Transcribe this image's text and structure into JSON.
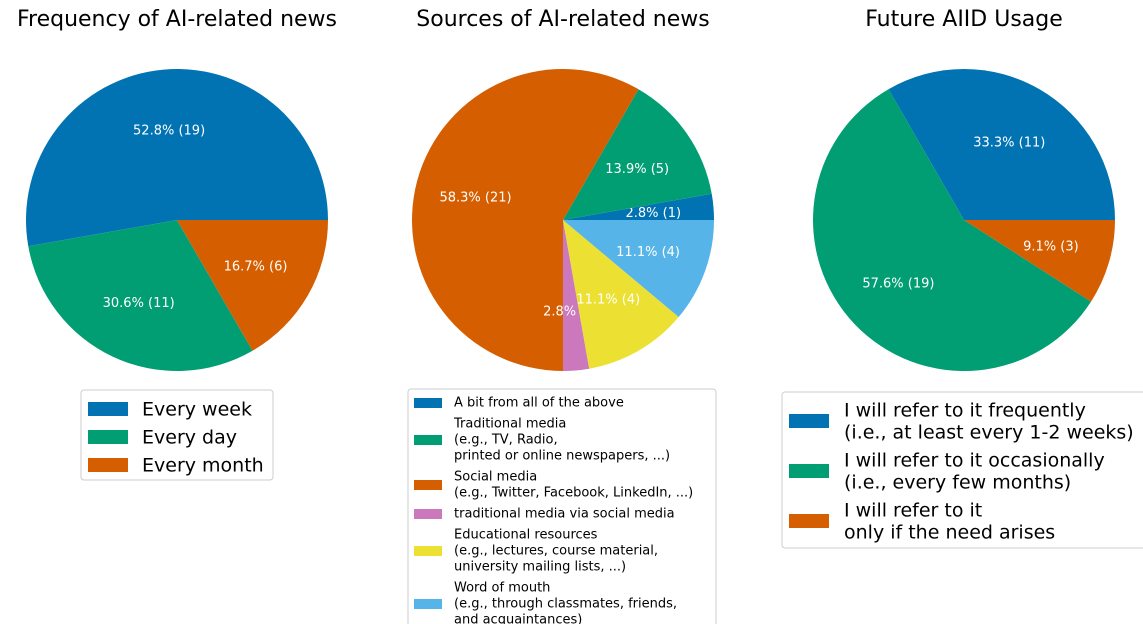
{
  "chart_data": [
    {
      "type": "pie",
      "title": "Frequency of AI-related news",
      "slices": [
        {
          "label": "Every week",
          "value": 19,
          "percent": 52.8,
          "color": "#0173b2",
          "data_label": "52.8% (19)"
        },
        {
          "label": "Every day",
          "value": 11,
          "percent": 30.6,
          "color": "#029e73",
          "data_label": "30.6% (11)"
        },
        {
          "label": "Every month",
          "value": 6,
          "percent": 16.7,
          "color": "#d55e00",
          "data_label": "16.7% (6)"
        }
      ],
      "legend": {
        "placement": "below",
        "entries": [
          "Every week",
          "Every day",
          "Every month"
        ]
      }
    },
    {
      "type": "pie",
      "title": "Sources of AI-related news",
      "slices": [
        {
          "label": "A bit from all of the above",
          "value": 1,
          "percent": 2.8,
          "color": "#0173b2",
          "data_label": "2.8% (1)"
        },
        {
          "label": "Traditional media\n(e.g., TV, Radio,\nprinted or online newspapers, ...)",
          "value": 5,
          "percent": 13.9,
          "color": "#029e73",
          "data_label": "13.9% (5)"
        },
        {
          "label": "Social media\n(e.g., Twitter, Facebook, LinkedIn, ...)",
          "value": 21,
          "percent": 58.3,
          "color": "#d55e00",
          "data_label": "58.3% (21)"
        },
        {
          "label": "traditional media via social media",
          "value": 1,
          "percent": 2.8,
          "color": "#cc78bc",
          "data_label": "2.8% (1)"
        },
        {
          "label": "Educational resources\n(e.g., lectures, course material,\nuniversity mailing lists, ...)",
          "value": 4,
          "percent": 11.1,
          "color": "#ece133",
          "data_label": "11.1% (4)"
        },
        {
          "label": "Word of mouth\n(e.g., through classmates, friends,\nand acquaintances)",
          "value": 4,
          "percent": 11.1,
          "color": "#56b4e9",
          "data_label": "11.1% (4)"
        }
      ],
      "legend": {
        "placement": "below"
      }
    },
    {
      "type": "pie",
      "title": "Future AIID Usage",
      "slices": [
        {
          "label": "I will refer to it frequently\n(i.e., at least every 1-2 weeks)",
          "value": 11,
          "percent": 33.3,
          "color": "#0173b2",
          "data_label": "33.3% (11)"
        },
        {
          "label": "I will refer to it occasionally\n(i.e., every few months)",
          "value": 19,
          "percent": 57.6,
          "color": "#029e73",
          "data_label": "57.6% (19)"
        },
        {
          "label": "I will refer to it\nonly if the need arises",
          "value": 3,
          "percent": 9.1,
          "color": "#d55e00",
          "data_label": "9.1% (3)"
        }
      ],
      "legend": {
        "placement": "below"
      }
    }
  ]
}
